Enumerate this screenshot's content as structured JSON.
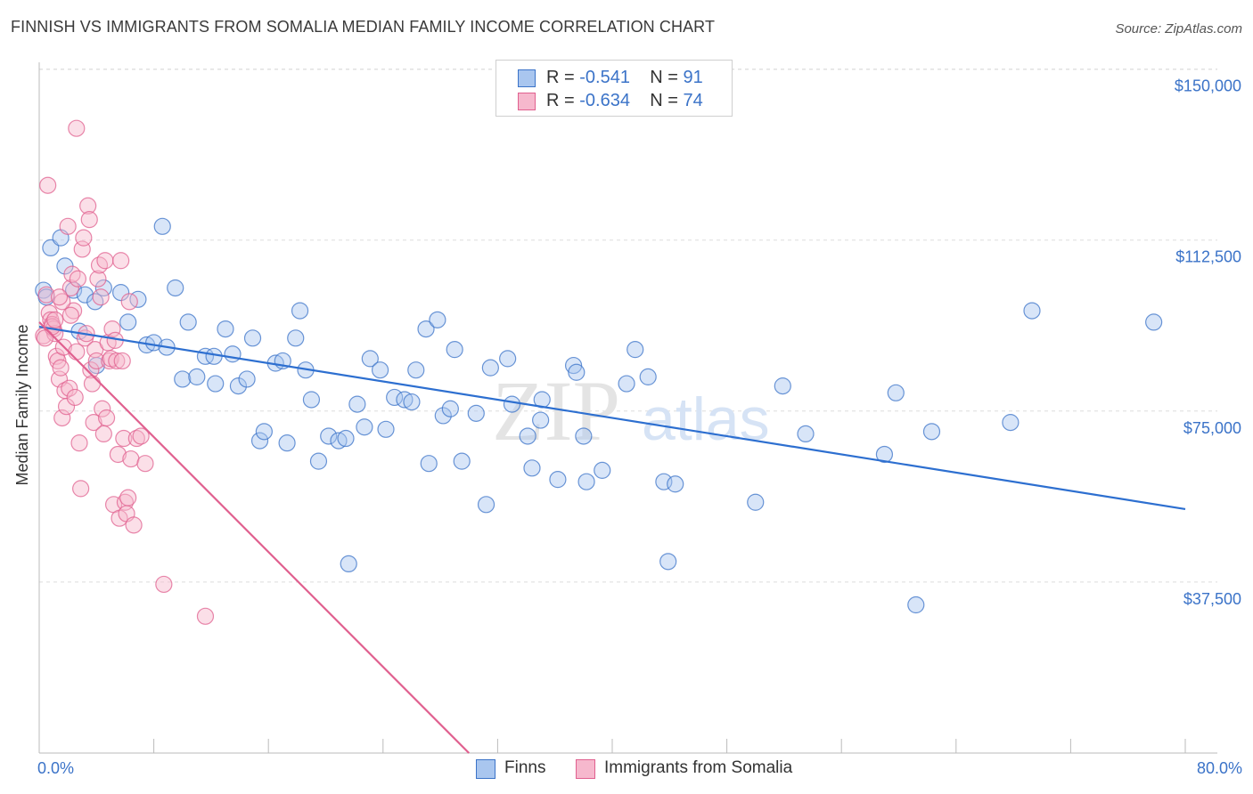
{
  "title": "FINNISH VS IMMIGRANTS FROM SOMALIA MEDIAN FAMILY INCOME CORRELATION CHART",
  "source": "Source: ZipAtlas.com",
  "watermark": {
    "zip": "ZIP",
    "atlas": "atlas"
  },
  "legend": {
    "r_label": "R = ",
    "n_label": "N = ",
    "rows": [
      {
        "r": "-0.541",
        "n": "91"
      },
      {
        "r": "-0.634",
        "n": "74"
      }
    ]
  },
  "colors": {
    "finns_fill": "#a9c6ef",
    "finns_stroke": "#3b73c8",
    "finns_line": "#2d6fd0",
    "somalia_fill": "#f6b8cd",
    "somalia_stroke": "#e0608f",
    "somalia_line": "#e0608f",
    "label_blue": "#3b73c8",
    "grid": "#dddddd"
  },
  "chart_data": {
    "type": "scatter",
    "title": "FINNISH VS IMMIGRANTS FROM SOMALIA MEDIAN FAMILY INCOME CORRELATION CHART",
    "xlabel": "",
    "ylabel": "Median Family Income",
    "xlim": [
      0,
      80
    ],
    "ylim": [
      0,
      155000
    ],
    "x_tick_labels": [
      "0.0%",
      "80.0%"
    ],
    "y_ticks": [
      37500,
      75000,
      112500,
      150000
    ],
    "y_tick_labels": [
      "$37,500",
      "$75,000",
      "$112,500",
      "$150,000"
    ],
    "grid": "horizontal dashed",
    "legend_position": "bottom",
    "series": [
      {
        "name": "Finns",
        "color": "#a9c6ef",
        "trend": {
          "x": [
            0,
            80
          ],
          "y": [
            93500,
            53500
          ]
        },
        "points": [
          [
            0.3,
            101.5
          ],
          [
            0.8,
            110.8
          ],
          [
            1.5,
            113
          ],
          [
            1.8,
            106.8
          ],
          [
            2.4,
            101.5
          ],
          [
            2.8,
            92.5
          ],
          [
            3.2,
            100.5
          ],
          [
            4,
            85
          ],
          [
            3.9,
            99
          ],
          [
            4.5,
            102
          ],
          [
            5.7,
            101
          ],
          [
            6.2,
            94.5
          ],
          [
            6.9,
            99.5
          ],
          [
            7.5,
            89.5
          ],
          [
            8,
            90
          ],
          [
            8.6,
            115.5
          ],
          [
            8.9,
            89
          ],
          [
            9.5,
            102
          ],
          [
            10,
            82
          ],
          [
            10.4,
            94.5
          ],
          [
            11,
            82.5
          ],
          [
            11.6,
            87
          ],
          [
            12.2,
            87
          ],
          [
            12.3,
            81
          ],
          [
            13,
            93
          ],
          [
            13.5,
            87.5
          ],
          [
            13.9,
            80.5
          ],
          [
            14.5,
            82
          ],
          [
            14.9,
            91
          ],
          [
            15.4,
            68.5
          ],
          [
            15.7,
            70.5
          ],
          [
            16.5,
            85.5
          ],
          [
            17,
            86
          ],
          [
            17.3,
            68
          ],
          [
            17.9,
            91
          ],
          [
            18.2,
            97
          ],
          [
            18.6,
            84
          ],
          [
            19,
            77.5
          ],
          [
            19.5,
            64
          ],
          [
            20.2,
            69.5
          ],
          [
            20.9,
            68.5
          ],
          [
            21.4,
            69
          ],
          [
            21.6,
            41.5
          ],
          [
            22.2,
            76.5
          ],
          [
            22.7,
            71.5
          ],
          [
            23.1,
            86.5
          ],
          [
            23.8,
            84
          ],
          [
            24.2,
            71
          ],
          [
            24.8,
            78
          ],
          [
            25.5,
            77.5
          ],
          [
            26,
            77
          ],
          [
            26.3,
            84
          ],
          [
            27,
            93
          ],
          [
            27.2,
            63.5
          ],
          [
            27.8,
            95
          ],
          [
            28.2,
            74
          ],
          [
            28.7,
            75.5
          ],
          [
            29,
            88.5
          ],
          [
            29.5,
            64
          ],
          [
            30.5,
            74.5
          ],
          [
            31.2,
            54.5
          ],
          [
            31.5,
            84.5
          ],
          [
            32.7,
            86.5
          ],
          [
            33,
            76.5
          ],
          [
            34.1,
            69.5
          ],
          [
            34.4,
            62.5
          ],
          [
            35,
            73
          ],
          [
            35.1,
            77.5
          ],
          [
            36.2,
            60
          ],
          [
            37.3,
            85
          ],
          [
            37.5,
            83.5
          ],
          [
            38,
            69.5
          ],
          [
            38.2,
            59.5
          ],
          [
            39.3,
            62
          ],
          [
            41,
            81
          ],
          [
            41.6,
            88.5
          ],
          [
            42.5,
            82.5
          ],
          [
            43.6,
            59.5
          ],
          [
            43.9,
            42
          ],
          [
            44.4,
            59
          ],
          [
            50,
            55
          ],
          [
            51.9,
            80.5
          ],
          [
            53.5,
            70
          ],
          [
            59,
            65.5
          ],
          [
            59.8,
            79
          ],
          [
            61.2,
            32.5
          ],
          [
            62.3,
            70.5
          ],
          [
            67.8,
            72.5
          ],
          [
            69.3,
            97
          ],
          [
            77.8,
            94.5
          ],
          [
            0.5,
            100
          ]
        ]
      },
      {
        "name": "Immigrants from Somalia",
        "color": "#f6b8cd",
        "trend": {
          "x": [
            0,
            30
          ],
          "y": [
            94500,
            0
          ]
        },
        "points": [
          [
            0.3,
            91.5
          ],
          [
            0.5,
            100.5
          ],
          [
            0.6,
            124.5
          ],
          [
            0.7,
            96.5
          ],
          [
            0.8,
            95
          ],
          [
            0.9,
            94
          ],
          [
            1,
            93
          ],
          [
            1.1,
            92
          ],
          [
            1.2,
            87
          ],
          [
            1.3,
            86
          ],
          [
            1.4,
            82
          ],
          [
            1.5,
            84.5
          ],
          [
            1.6,
            73.5
          ],
          [
            1.7,
            89
          ],
          [
            1.8,
            79.5
          ],
          [
            1.9,
            76
          ],
          [
            2,
            115.5
          ],
          [
            2.1,
            80
          ],
          [
            2.2,
            102
          ],
          [
            2.3,
            105
          ],
          [
            2.4,
            97
          ],
          [
            2.5,
            78
          ],
          [
            2.6,
            88
          ],
          [
            2.7,
            104
          ],
          [
            2.8,
            68
          ],
          [
            2.9,
            58
          ],
          [
            3,
            110.5
          ],
          [
            3.1,
            113
          ],
          [
            3.2,
            91
          ],
          [
            3.3,
            92
          ],
          [
            3.4,
            120
          ],
          [
            3.5,
            117
          ],
          [
            3.6,
            84
          ],
          [
            3.7,
            81
          ],
          [
            3.8,
            72.5
          ],
          [
            3.9,
            88.5
          ],
          [
            4,
            86
          ],
          [
            4.1,
            104
          ],
          [
            4.2,
            107
          ],
          [
            4.3,
            100
          ],
          [
            4.4,
            75.5
          ],
          [
            4.5,
            70
          ],
          [
            4.6,
            108
          ],
          [
            4.7,
            73.5
          ],
          [
            4.8,
            90
          ],
          [
            4.9,
            86
          ],
          [
            5,
            86.5
          ],
          [
            5.1,
            93
          ],
          [
            5.2,
            54.5
          ],
          [
            5.3,
            90.5
          ],
          [
            5.4,
            86
          ],
          [
            5.5,
            65.5
          ],
          [
            5.6,
            51.5
          ],
          [
            5.7,
            108
          ],
          [
            5.8,
            86
          ],
          [
            5.9,
            69
          ],
          [
            6,
            55
          ],
          [
            6.1,
            52.5
          ],
          [
            6.2,
            56
          ],
          [
            6.3,
            99
          ],
          [
            6.4,
            64.5
          ],
          [
            6.6,
            50
          ],
          [
            6.8,
            69
          ],
          [
            7.1,
            69.5
          ],
          [
            7.4,
            63.5
          ],
          [
            8.7,
            37
          ],
          [
            11.6,
            30
          ],
          [
            2.6,
            137
          ],
          [
            1.6,
            99
          ],
          [
            1.4,
            100
          ],
          [
            0.9,
            93.5
          ],
          [
            2.2,
            96
          ],
          [
            1.1,
            95
          ],
          [
            0.4,
            91
          ]
        ]
      }
    ]
  },
  "bottom_legend": [
    {
      "label": "Finns"
    },
    {
      "label": "Immigrants from Somalia"
    }
  ]
}
